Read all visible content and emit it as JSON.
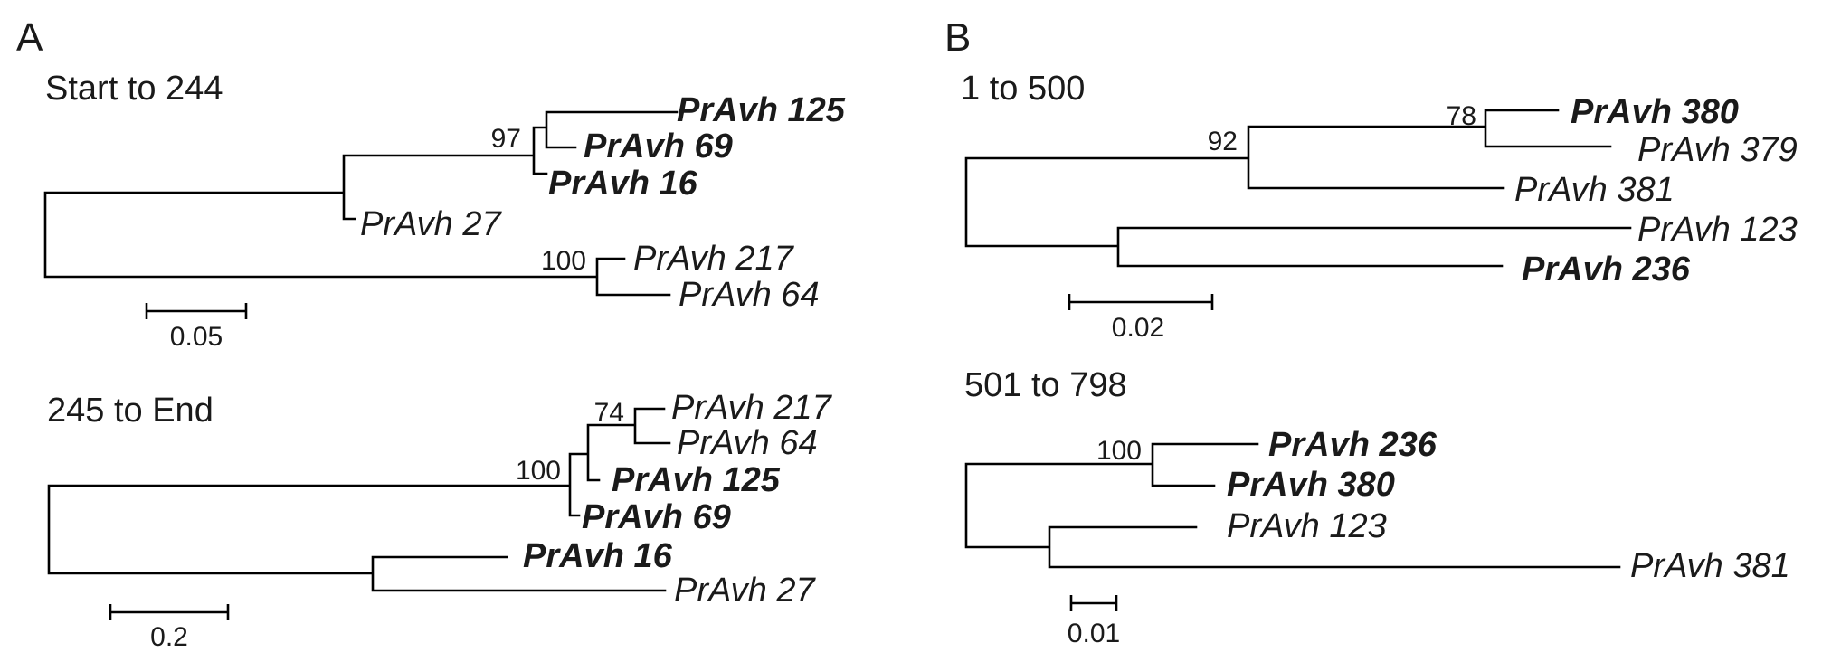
{
  "panel_a": {
    "label": "A",
    "tree_1": {
      "title": "Start to 244",
      "leaves": [
        {
          "label": "PrAvh 125",
          "bold": true
        },
        {
          "label": "PrAvh 69",
          "bold": true
        },
        {
          "label": "PrAvh 16",
          "bold": true
        },
        {
          "label": "PrAvh 27",
          "bold": false
        },
        {
          "label": "PrAvh 217",
          "bold": false
        },
        {
          "label": "PrAvh 64",
          "bold": false
        }
      ],
      "bootstrap": [
        "97",
        "100"
      ],
      "scale": "0.05"
    },
    "tree_2": {
      "title": "245 to End",
      "leaves": [
        {
          "label": "PrAvh 217",
          "bold": false
        },
        {
          "label": "PrAvh 64",
          "bold": false
        },
        {
          "label": "PrAvh 125",
          "bold": true
        },
        {
          "label": "PrAvh 69",
          "bold": true
        },
        {
          "label": "PrAvh 16",
          "bold": true
        },
        {
          "label": "PrAvh 27",
          "bold": false
        }
      ],
      "bootstrap": [
        "74",
        "100"
      ],
      "scale": "0.2"
    }
  },
  "panel_b": {
    "label": "B",
    "tree_1": {
      "title": "1 to 500",
      "leaves": [
        {
          "label": "PrAvh 380",
          "bold": true
        },
        {
          "label": "PrAvh 379",
          "bold": false
        },
        {
          "label": "PrAvh 381",
          "bold": false
        },
        {
          "label": "PrAvh 123",
          "bold": false
        },
        {
          "label": "PrAvh 236",
          "bold": true
        }
      ],
      "bootstrap": [
        "78",
        "92"
      ],
      "scale": "0.02"
    },
    "tree_2": {
      "title": "501 to 798",
      "leaves": [
        {
          "label": "PrAvh 236",
          "bold": true
        },
        {
          "label": "PrAvh 380",
          "bold": true
        },
        {
          "label": "PrAvh 123",
          "bold": false
        },
        {
          "label": "PrAvh 381",
          "bold": false
        }
      ],
      "bootstrap": [
        "100"
      ],
      "scale": "0.01"
    }
  }
}
